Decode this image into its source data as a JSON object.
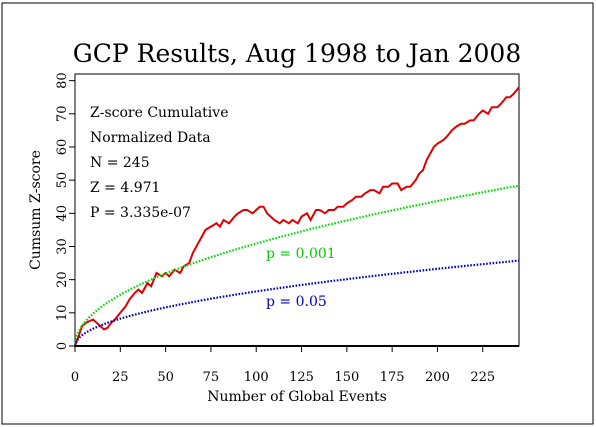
{
  "chart_data": {
    "type": "line",
    "title": "GCP Results, Aug 1998 to Jan 2008",
    "xlabel": "Number of Global Events",
    "ylabel": "Cumsum Z-score",
    "xlim": [
      0,
      245
    ],
    "ylim": [
      0,
      82
    ],
    "xticks": [
      0,
      25,
      50,
      75,
      100,
      125,
      150,
      175,
      200,
      225
    ],
    "yticks": [
      0,
      10,
      20,
      30,
      40,
      50,
      60,
      70,
      80
    ],
    "grid": false,
    "annotations": [
      "Z-score Cumulative",
      "Normalized Data",
      "N = 245",
      "Z = 4.971",
      "P = 3.335e-07"
    ],
    "series": [
      {
        "role": "observed",
        "color": "#e00000",
        "style": "solid",
        "x": [
          0,
          2,
          4,
          6,
          8,
          10,
          12,
          14,
          16,
          18,
          20,
          22,
          25,
          28,
          30,
          33,
          35,
          37,
          40,
          42,
          45,
          48,
          50,
          52,
          55,
          58,
          60,
          63,
          65,
          68,
          70,
          72,
          75,
          78,
          80,
          82,
          85,
          88,
          90,
          93,
          95,
          98,
          100,
          102,
          104,
          106,
          108,
          110,
          113,
          115,
          118,
          120,
          123,
          125,
          128,
          130,
          133,
          135,
          138,
          140,
          143,
          145,
          148,
          150,
          153,
          155,
          158,
          160,
          163,
          165,
          168,
          170,
          173,
          175,
          178,
          180,
          183,
          185,
          188,
          190,
          192,
          194,
          196,
          198,
          200,
          203,
          205,
          208,
          210,
          213,
          215,
          218,
          220,
          223,
          225,
          228,
          230,
          233,
          235,
          238,
          240,
          242,
          245
        ],
        "y": [
          0,
          3,
          6,
          7,
          7.5,
          8,
          7,
          6,
          5,
          5.5,
          7,
          8,
          10,
          12,
          14,
          16,
          17,
          16,
          19,
          18,
          22,
          21,
          22,
          21,
          23,
          22,
          24,
          25,
          28,
          31,
          33,
          35,
          36,
          37,
          36,
          38,
          37,
          39,
          40,
          41,
          41,
          40,
          41,
          42,
          42,
          40,
          39,
          38,
          37,
          38,
          37,
          38,
          37,
          39,
          40,
          38,
          41,
          41,
          40,
          41,
          41,
          42,
          42,
          43,
          44,
          45,
          45,
          46,
          47,
          47,
          46,
          48,
          48,
          49,
          49,
          47,
          48,
          48,
          50,
          52,
          53,
          56,
          58,
          60,
          61,
          62,
          63,
          65,
          66,
          67,
          67,
          68,
          68,
          70,
          71,
          70,
          72,
          72,
          73,
          75,
          75,
          76,
          78
        ]
      },
      {
        "role": "threshold",
        "name": "p = 0.001",
        "color": "#00dd00",
        "style": "dotted",
        "formula": "3.09*sqrt(x)"
      },
      {
        "role": "threshold",
        "name": "p = 0.05",
        "color": "#0000bb",
        "style": "dotted",
        "formula": "1.645*sqrt(x)"
      },
      {
        "role": "baseline",
        "color": "#000000",
        "style": "solid",
        "formula": "0"
      }
    ]
  }
}
